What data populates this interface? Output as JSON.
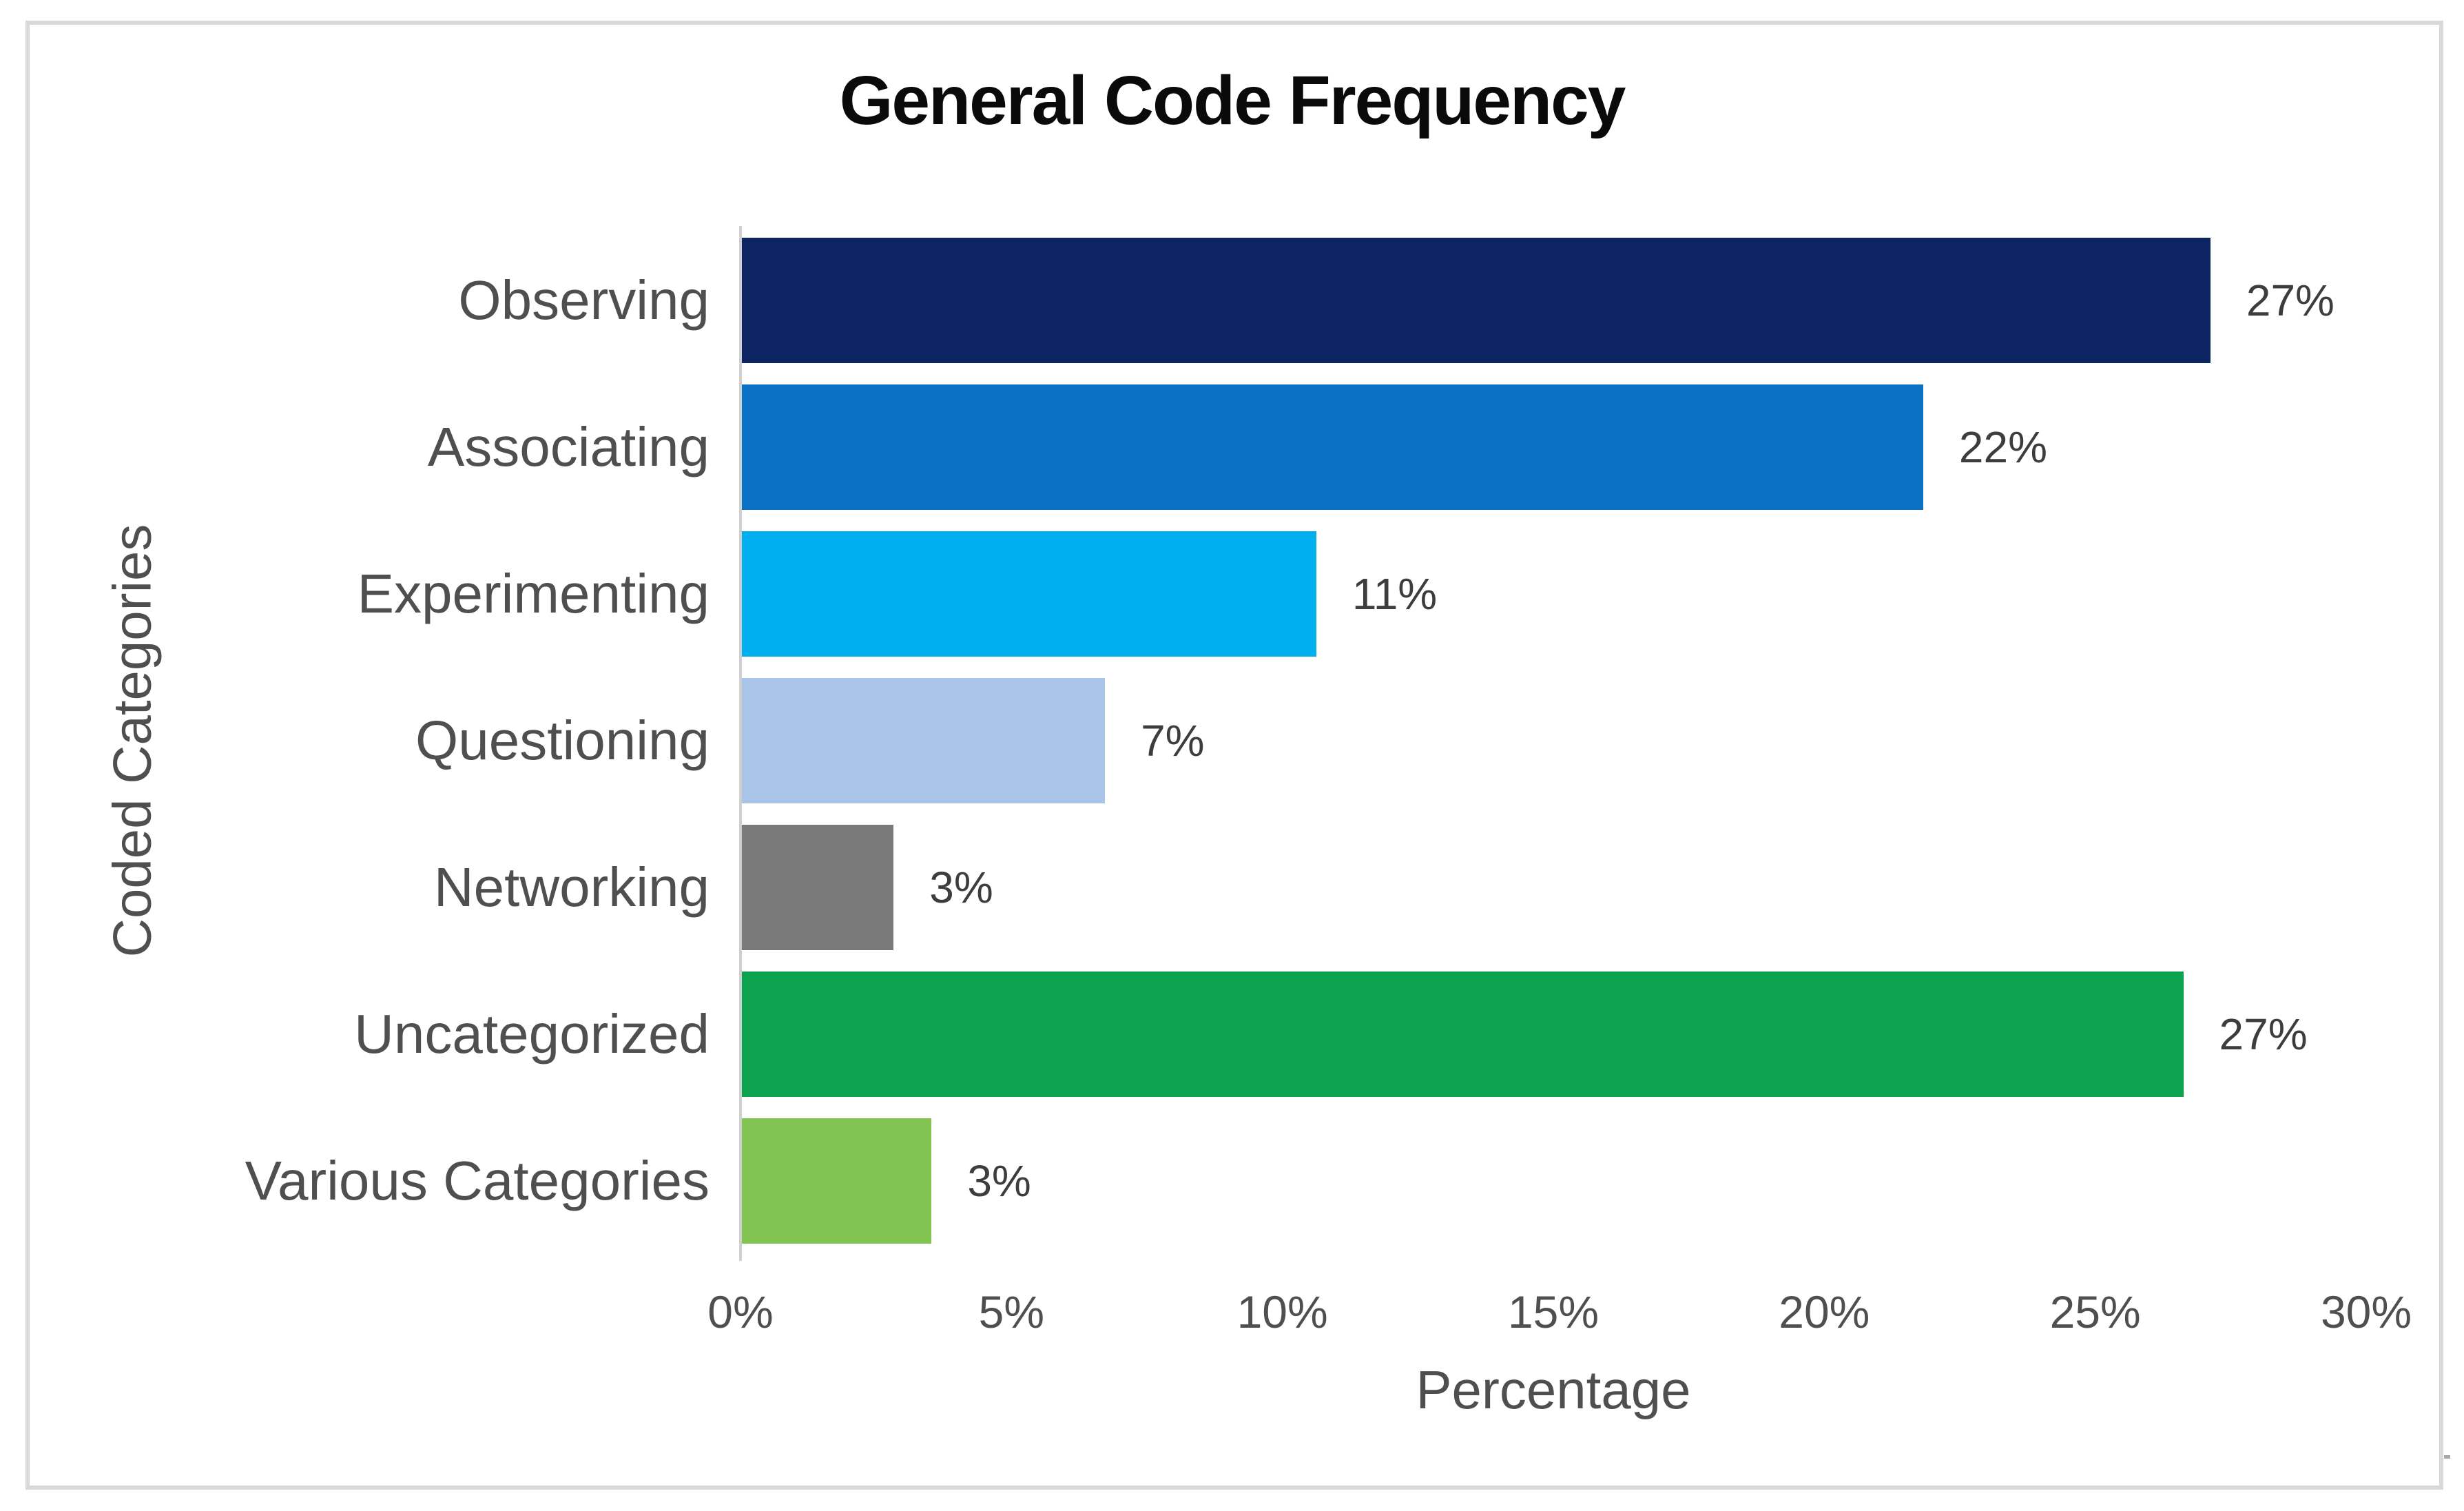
{
  "window": {
    "background_color": "#ffffff",
    "frame_border_color": "#d9d9d9"
  },
  "chart_data": {
    "type": "bar",
    "orientation": "horizontal",
    "title": "General Code Frequency",
    "xlabel": "Percentage",
    "ylabel": "Coded Categories",
    "categories": [
      "Observing",
      "Associating",
      "Experimenting",
      "Questioning",
      "Networking",
      "Uncategorized",
      "Various Categories"
    ],
    "values": [
      27,
      22,
      11,
      7,
      3,
      27,
      3
    ],
    "value_labels": [
      "27%",
      "22%",
      "11%",
      "7%",
      "3%",
      "27%",
      "3%"
    ],
    "bar_lengths_pct": [
      27.1,
      21.8,
      10.6,
      6.7,
      2.8,
      26.6,
      3.5
    ],
    "bar_colors": [
      "#0d2462",
      "#0a71c4",
      "#00afee",
      "#a8c5e8",
      "#7a7a7a",
      "#0da24e",
      "#82c452"
    ],
    "xlim": [
      0,
      30
    ],
    "x_ticks": [
      "0%",
      "5%",
      "10%",
      "15%",
      "20%",
      "25%",
      "30%"
    ],
    "grid": false,
    "legend": false,
    "axis_line_color": "#cfcfcf",
    "axis_text_color": "#4f4f4f",
    "data_label_color": "#3d3d3d",
    "title_color": "#0a0a0a"
  }
}
